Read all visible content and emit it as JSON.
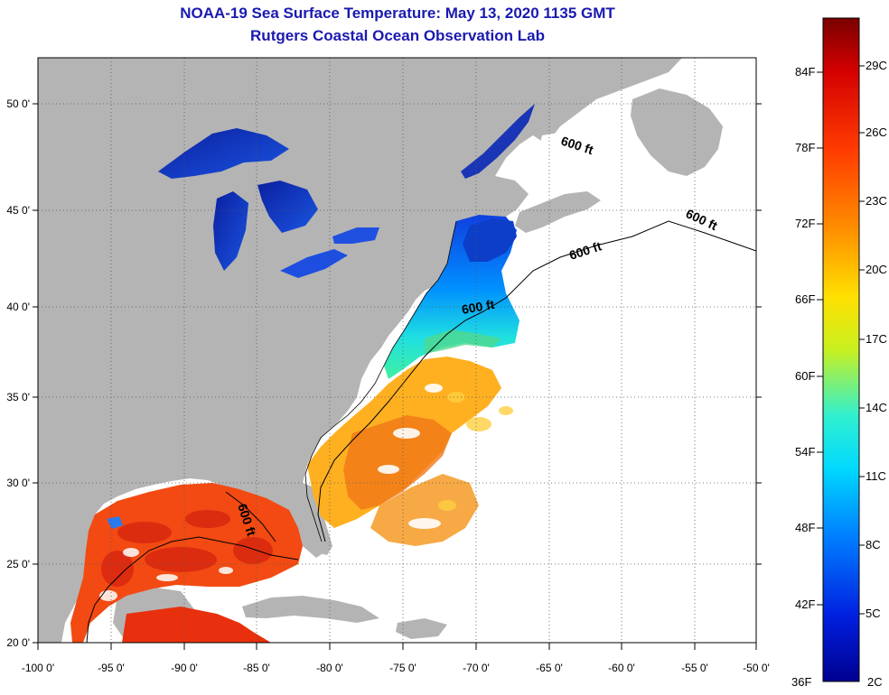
{
  "header": {
    "title": "NOAA-19 Sea Surface Temperature:  May 13, 2020 1135 GMT",
    "subtitle": "Rutgers Coastal Ocean Observation Lab"
  },
  "map": {
    "lon_ticks": [
      "-100 0'",
      "-95 0'",
      "-90 0'",
      "-85 0'",
      "-80 0'",
      "-75 0'",
      "-70 0'",
      "-65 0'",
      "-60 0'",
      "-55 0'",
      "-50 0'"
    ],
    "lat_ticks": [
      "50 0'",
      "45 0'",
      "40 0'",
      "35 0'",
      "30 0'",
      "25 0'",
      "20 0'"
    ],
    "contour_labels": [
      "600 ft",
      "600 ft",
      "600 ft",
      "600 ft",
      "600 ft"
    ],
    "land_color": "#b4b4b4",
    "ocean_nodata_color": "#ffffff"
  },
  "colorbar": {
    "fahrenheit_labels": [
      "84F",
      "78F",
      "72F",
      "66F",
      "60F",
      "54F",
      "48F",
      "42F",
      "36F"
    ],
    "celsius_labels": [
      "29C",
      "26C",
      "23C",
      "20C",
      "17C",
      "14C",
      "11C",
      "8C",
      "5C",
      "2C"
    ],
    "colors": [
      "#7a0000",
      "#d40000",
      "#ff3c00",
      "#ff9000",
      "#ffe000",
      "#c8f020",
      "#30f0d0",
      "#00d8ff",
      "#0080ff",
      "#0020e0",
      "#000090"
    ]
  }
}
